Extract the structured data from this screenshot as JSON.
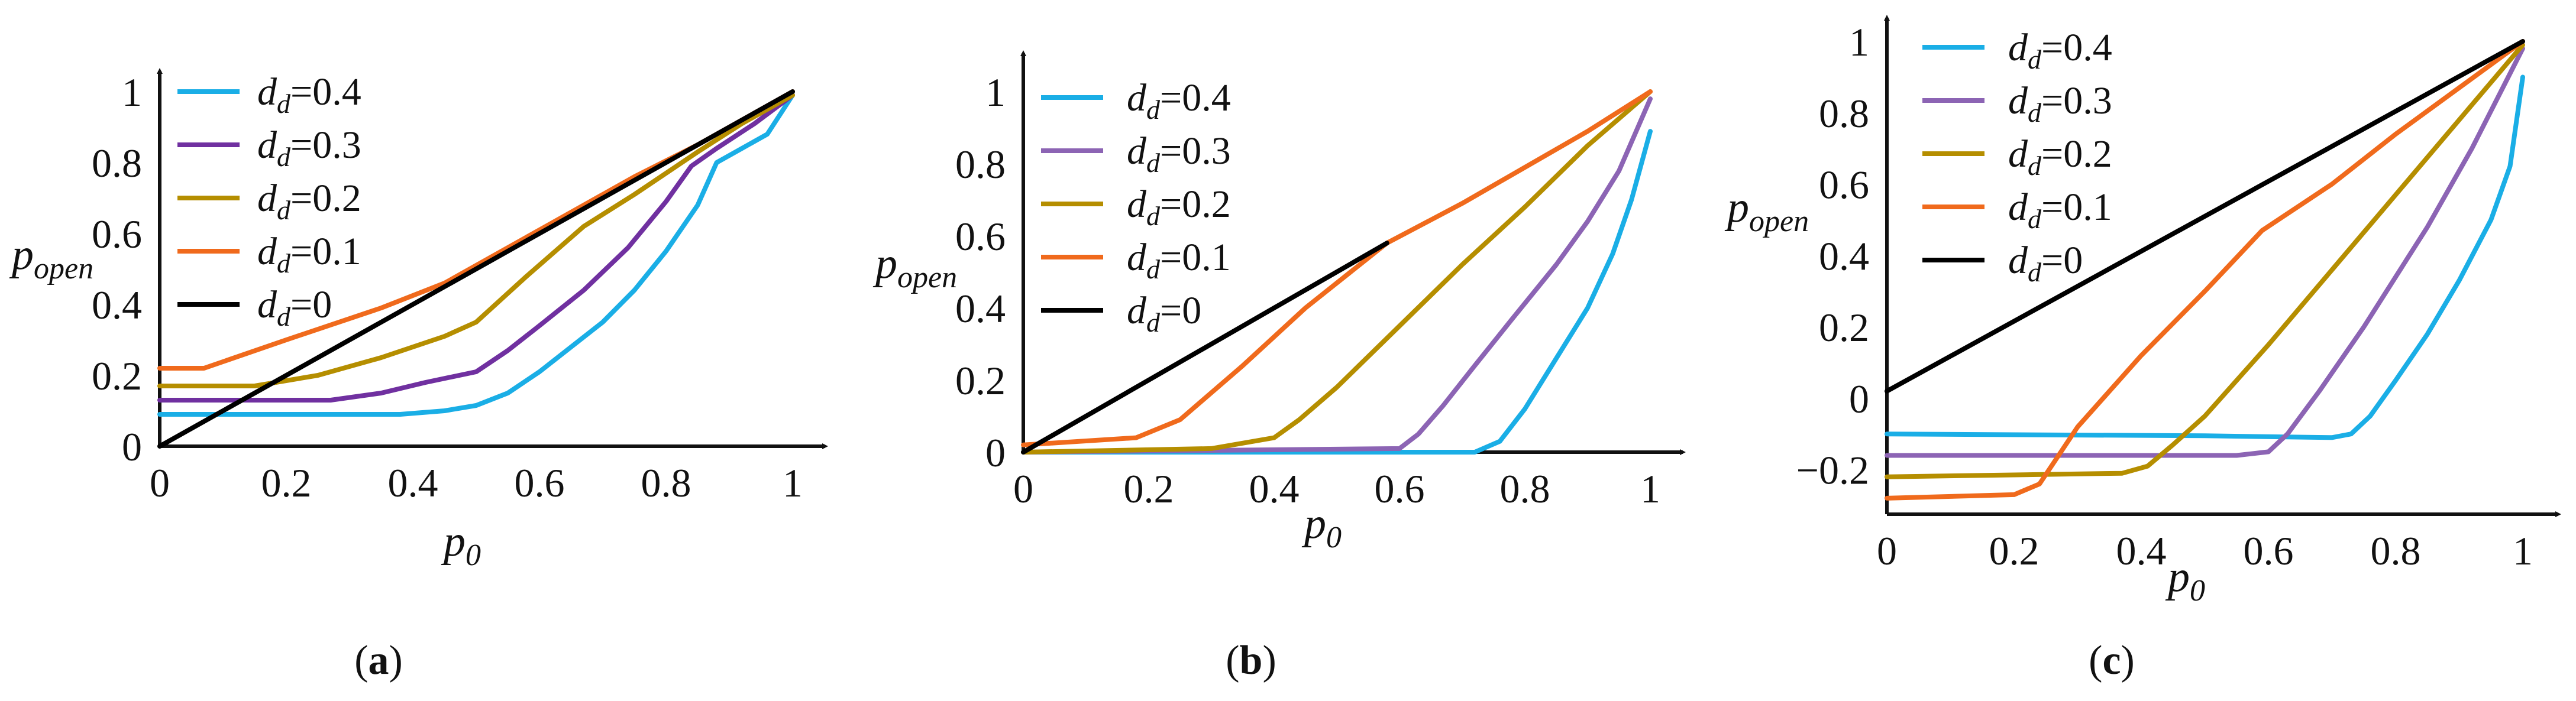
{
  "chart_data": [
    {
      "panel_label": "a",
      "type": "line",
      "xlabel": "p0",
      "ylabel": "popen",
      "xlim": [
        0,
        1
      ],
      "ylim": [
        0,
        1
      ],
      "xticks": [
        "0",
        "0.2",
        "0.4",
        "0.6",
        "0.8",
        "1"
      ],
      "yticks": [
        "0",
        "0.2",
        "0.4",
        "0.6",
        "0.8",
        "1"
      ],
      "legend_position": "top-left",
      "series": [
        {
          "name": "dd=0.4",
          "color": "#1aaee6",
          "x": [
            0,
            0.38,
            0.45,
            0.5,
            0.55,
            0.6,
            0.65,
            0.7,
            0.75,
            0.8,
            0.85,
            0.88,
            0.92,
            0.96,
            1.0
          ],
          "y": [
            0.09,
            0.09,
            0.1,
            0.115,
            0.15,
            0.21,
            0.28,
            0.35,
            0.44,
            0.55,
            0.68,
            0.8,
            0.84,
            0.88,
            0.99
          ]
        },
        {
          "name": "dd=0.3",
          "color": "#7030a0",
          "x": [
            0,
            0.27,
            0.35,
            0.42,
            0.5,
            0.55,
            0.6,
            0.67,
            0.74,
            0.8,
            0.84,
            0.88,
            0.94,
            1.0
          ],
          "y": [
            0.13,
            0.13,
            0.15,
            0.18,
            0.21,
            0.27,
            0.34,
            0.44,
            0.56,
            0.69,
            0.79,
            0.84,
            0.91,
            0.99
          ]
        },
        {
          "name": "dd=0.2",
          "color": "#b58e00",
          "x": [
            0,
            0.15,
            0.25,
            0.35,
            0.45,
            0.5,
            0.58,
            0.67,
            0.75,
            0.85,
            0.92,
            1.0
          ],
          "y": [
            0.17,
            0.17,
            0.2,
            0.25,
            0.31,
            0.35,
            0.48,
            0.62,
            0.71,
            0.83,
            0.91,
            0.99
          ]
        },
        {
          "name": "dd=0.1",
          "color": "#f06a1c",
          "x": [
            0,
            0.07,
            0.2,
            0.35,
            0.45,
            0.55,
            0.65,
            0.75,
            0.85,
            0.93,
            1.0
          ],
          "y": [
            0.22,
            0.22,
            0.3,
            0.39,
            0.46,
            0.56,
            0.66,
            0.76,
            0.85,
            0.93,
            1.0
          ]
        },
        {
          "name": "dd=0",
          "color": "#000000",
          "x": [
            0,
            1.0
          ],
          "y": [
            0,
            1.0
          ]
        }
      ]
    },
    {
      "panel_label": "b",
      "type": "line",
      "xlabel": "p0",
      "ylabel": "popen",
      "xlim": [
        0,
        1
      ],
      "ylim": [
        0,
        1
      ],
      "xticks": [
        "0",
        "0.2",
        "0.4",
        "0.6",
        "0.8",
        "1"
      ],
      "yticks": [
        "0",
        "0.2",
        "0.4",
        "0.6",
        "0.8",
        "1"
      ],
      "legend_position": "top-left",
      "series": [
        {
          "name": "dd=0.4",
          "color": "#1aaee6",
          "x": [
            0,
            0.72,
            0.76,
            0.8,
            0.85,
            0.9,
            0.94,
            0.97,
            1.0
          ],
          "y": [
            0.0,
            0.0,
            0.03,
            0.12,
            0.26,
            0.4,
            0.55,
            0.7,
            0.89
          ]
        },
        {
          "name": "dd=0.3",
          "color": "#8c64b4",
          "x": [
            0,
            0.6,
            0.63,
            0.67,
            0.72,
            0.78,
            0.85,
            0.9,
            0.95,
            1.0
          ],
          "y": [
            0.0,
            0.01,
            0.05,
            0.13,
            0.24,
            0.37,
            0.52,
            0.64,
            0.78,
            0.98
          ]
        },
        {
          "name": "dd=0.2",
          "color": "#b58e00",
          "x": [
            0,
            0.3,
            0.4,
            0.44,
            0.5,
            0.6,
            0.7,
            0.8,
            0.9,
            1.0
          ],
          "y": [
            0.0,
            0.01,
            0.04,
            0.09,
            0.18,
            0.35,
            0.52,
            0.68,
            0.85,
            1.0
          ]
        },
        {
          "name": "dd=0.1",
          "color": "#f06a1c",
          "x": [
            0,
            0.18,
            0.25,
            0.35,
            0.45,
            0.58,
            0.7,
            0.8,
            0.9,
            1.0
          ],
          "y": [
            0.02,
            0.04,
            0.09,
            0.24,
            0.4,
            0.58,
            0.69,
            0.79,
            0.89,
            1.0
          ]
        },
        {
          "name": "dd=0",
          "color": "#000000",
          "x": [
            0,
            0.58
          ],
          "y": [
            0,
            0.58
          ]
        }
      ]
    },
    {
      "panel_label": "c",
      "type": "line",
      "xlabel": "p0",
      "ylabel": "popen",
      "xlim": [
        0,
        1
      ],
      "ylim": [
        -0.3,
        1
      ],
      "xticks": [
        "0",
        "0.2",
        "0.4",
        "0.6",
        "0.8",
        "1"
      ],
      "yticks": [
        "-0.2",
        "0",
        "0.2",
        "0.4",
        "0.6",
        "0.8",
        "1"
      ],
      "legend_position": "top-left",
      "series": [
        {
          "name": "dd=0.4",
          "color": "#1aaee6",
          "x": [
            0,
            0.5,
            0.7,
            0.73,
            0.76,
            0.8,
            0.85,
            0.9,
            0.95,
            0.98,
            1.0
          ],
          "y": [
            -0.1,
            -0.105,
            -0.11,
            -0.1,
            -0.05,
            0.05,
            0.18,
            0.33,
            0.5,
            0.65,
            0.9
          ]
        },
        {
          "name": "dd=0.3",
          "color": "#8c64b4",
          "x": [
            0,
            0.55,
            0.6,
            0.63,
            0.68,
            0.75,
            0.85,
            0.92,
            1.0
          ],
          "y": [
            -0.16,
            -0.16,
            -0.15,
            -0.1,
            0.02,
            0.2,
            0.48,
            0.7,
            0.98
          ]
        },
        {
          "name": "dd=0.2",
          "color": "#b58e00",
          "x": [
            0,
            0.37,
            0.41,
            0.45,
            0.5,
            0.6,
            0.7,
            0.8,
            0.9,
            1.0
          ],
          "y": [
            -0.22,
            -0.21,
            -0.19,
            -0.13,
            -0.05,
            0.15,
            0.36,
            0.57,
            0.78,
            0.99
          ]
        },
        {
          "name": "dd=0.1",
          "color": "#f06a1c",
          "x": [
            0,
            0.2,
            0.24,
            0.3,
            0.4,
            0.5,
            0.59,
            0.7,
            0.8,
            0.9,
            1.0
          ],
          "y": [
            -0.28,
            -0.27,
            -0.24,
            -0.08,
            0.12,
            0.3,
            0.47,
            0.6,
            0.74,
            0.87,
            1.0
          ]
        },
        {
          "name": "dd=0",
          "color": "#000000",
          "x": [
            0,
            1.0
          ],
          "y": [
            0.02,
            1.0
          ]
        }
      ]
    }
  ]
}
